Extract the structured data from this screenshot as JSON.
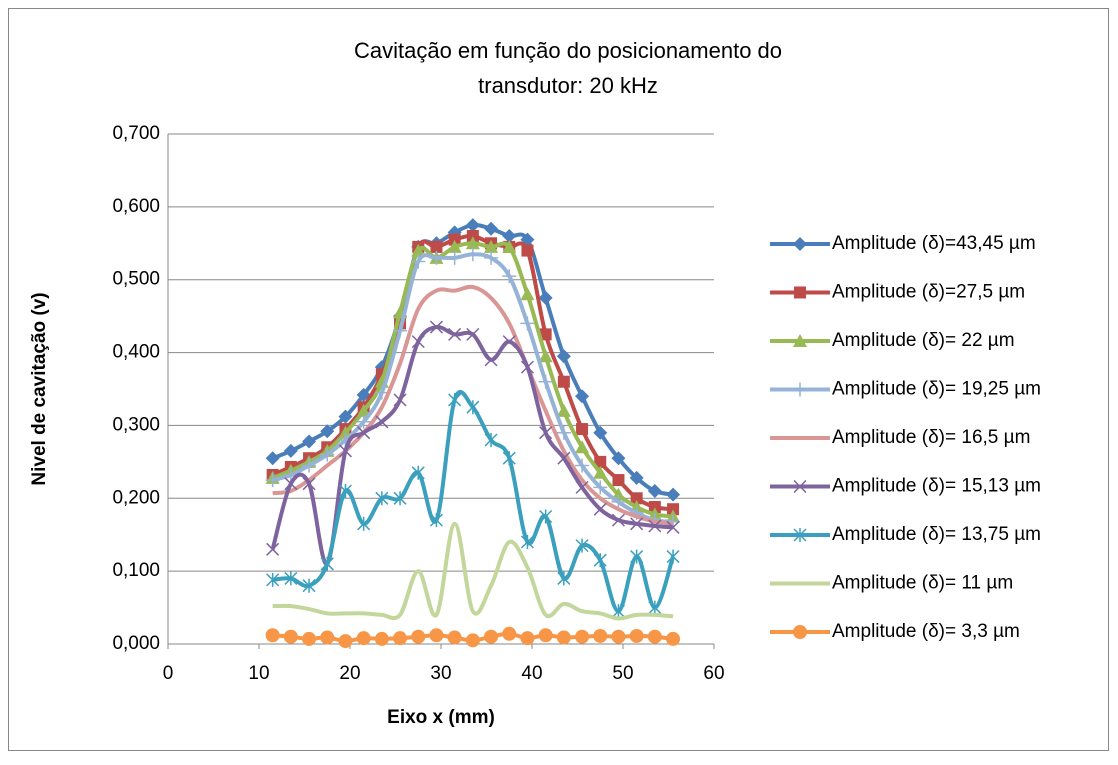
{
  "chart_data": {
    "type": "line",
    "title": [
      "Cavitação em função do posicionamento do",
      "transdutor: 20 kHz"
    ],
    "x_label": "Eixo x (mm)",
    "y_label": "Nivel de cavitação (v)",
    "x": [
      11.5,
      13.5,
      15.5,
      17.5,
      19.5,
      21.5,
      23.5,
      25.5,
      27.5,
      29.5,
      31.5,
      33.5,
      35.5,
      37.5,
      39.5,
      41.5,
      43.5,
      45.5,
      47.5,
      49.5,
      51.5,
      53.5,
      55.5
    ],
    "xlim": [
      0,
      60
    ],
    "xticks": [
      0,
      10,
      20,
      30,
      40,
      50,
      60
    ],
    "ylim": [
      0,
      0.7
    ],
    "yticks": [
      {
        "value": 0,
        "label": "0,000"
      },
      {
        "value": 0.1,
        "label": "0,100"
      },
      {
        "value": 0.2,
        "label": "0,200"
      },
      {
        "value": 0.3,
        "label": "0,300"
      },
      {
        "value": 0.4,
        "label": "0,400"
      },
      {
        "value": 0.5,
        "label": "0,500"
      },
      {
        "value": 0.6,
        "label": "0,600"
      },
      {
        "value": 0.7,
        "label": "0,700"
      }
    ],
    "grid": true,
    "legend": "right",
    "smooth": true,
    "series": [
      {
        "name": "Amplitude (δ)=43,45 µm",
        "color": "#4a7ebb",
        "marker": "diamond",
        "values": [
          0.255,
          0.265,
          0.278,
          0.292,
          0.312,
          0.342,
          0.38,
          0.45,
          0.545,
          0.55,
          0.565,
          0.575,
          0.57,
          0.56,
          0.555,
          0.475,
          0.395,
          0.34,
          0.29,
          0.255,
          0.228,
          0.21,
          0.205
        ]
      },
      {
        "name": "Amplitude (δ)=27,5 µm",
        "color": "#be4b48",
        "marker": "square",
        "values": [
          0.232,
          0.243,
          0.255,
          0.27,
          0.295,
          0.325,
          0.37,
          0.44,
          0.545,
          0.545,
          0.555,
          0.56,
          0.55,
          0.545,
          0.54,
          0.425,
          0.36,
          0.295,
          0.25,
          0.225,
          0.2,
          0.188,
          0.185
        ]
      },
      {
        "name": "Amplitude (δ)= 22 µm",
        "color": "#98b954",
        "marker": "triangle",
        "values": [
          0.228,
          0.238,
          0.25,
          0.265,
          0.29,
          0.32,
          0.36,
          0.455,
          0.54,
          0.53,
          0.545,
          0.55,
          0.545,
          0.545,
          0.48,
          0.395,
          0.32,
          0.27,
          0.235,
          0.205,
          0.188,
          0.178,
          0.175
        ]
      },
      {
        "name": "Amplitude (δ)= 19,25 µm",
        "color": "#95b3d7",
        "marker": "plus",
        "values": [
          0.225,
          0.232,
          0.245,
          0.26,
          0.28,
          0.305,
          0.345,
          0.43,
          0.525,
          0.53,
          0.53,
          0.535,
          0.53,
          0.505,
          0.44,
          0.36,
          0.29,
          0.245,
          0.215,
          0.195,
          0.18,
          0.17,
          0.168
        ]
      },
      {
        "name": "Amplitude (δ)= 16,5 µm",
        "color": "#d99694",
        "marker": "none",
        "values": [
          0.207,
          0.21,
          0.225,
          0.245,
          0.265,
          0.29,
          0.325,
          0.385,
          0.46,
          0.485,
          0.485,
          0.49,
          0.475,
          0.44,
          0.38,
          0.32,
          0.265,
          0.225,
          0.2,
          0.185,
          0.175,
          0.168,
          0.165
        ]
      },
      {
        "name": "Amplitude (δ)= 15,13 µm",
        "color": "#7e649e",
        "marker": "x",
        "values": [
          0.13,
          0.22,
          0.22,
          0.11,
          0.265,
          0.29,
          0.305,
          0.335,
          0.415,
          0.435,
          0.425,
          0.425,
          0.39,
          0.415,
          0.38,
          0.29,
          0.255,
          0.215,
          0.185,
          0.17,
          0.165,
          0.162,
          0.16
        ]
      },
      {
        "name": "Amplitude (δ)= 13,75 µm",
        "color": "#3aa0bd",
        "marker": "star",
        "values": [
          0.088,
          0.09,
          0.08,
          0.11,
          0.21,
          0.165,
          0.2,
          0.2,
          0.235,
          0.17,
          0.335,
          0.325,
          0.28,
          0.255,
          0.14,
          0.175,
          0.09,
          0.135,
          0.115,
          0.045,
          0.12,
          0.05,
          0.12
        ]
      },
      {
        "name": "Amplitude (δ)=  11 µm",
        "color": "#c3d69b",
        "marker": "none",
        "values": [
          0.052,
          0.052,
          0.048,
          0.042,
          0.042,
          0.042,
          0.04,
          0.04,
          0.1,
          0.04,
          0.165,
          0.045,
          0.08,
          0.14,
          0.105,
          0.04,
          0.055,
          0.045,
          0.042,
          0.035,
          0.04,
          0.04,
          0.038
        ]
      },
      {
        "name": "Amplitude (δ)= 3,3 µm",
        "color": "#f79646",
        "marker": "circle",
        "values": [
          0.012,
          0.01,
          0.007,
          0.009,
          0.004,
          0.008,
          0.007,
          0.008,
          0.01,
          0.012,
          0.009,
          0.005,
          0.01,
          0.014,
          0.008,
          0.012,
          0.009,
          0.01,
          0.011,
          0.01,
          0.011,
          0.01,
          0.007
        ]
      }
    ]
  }
}
